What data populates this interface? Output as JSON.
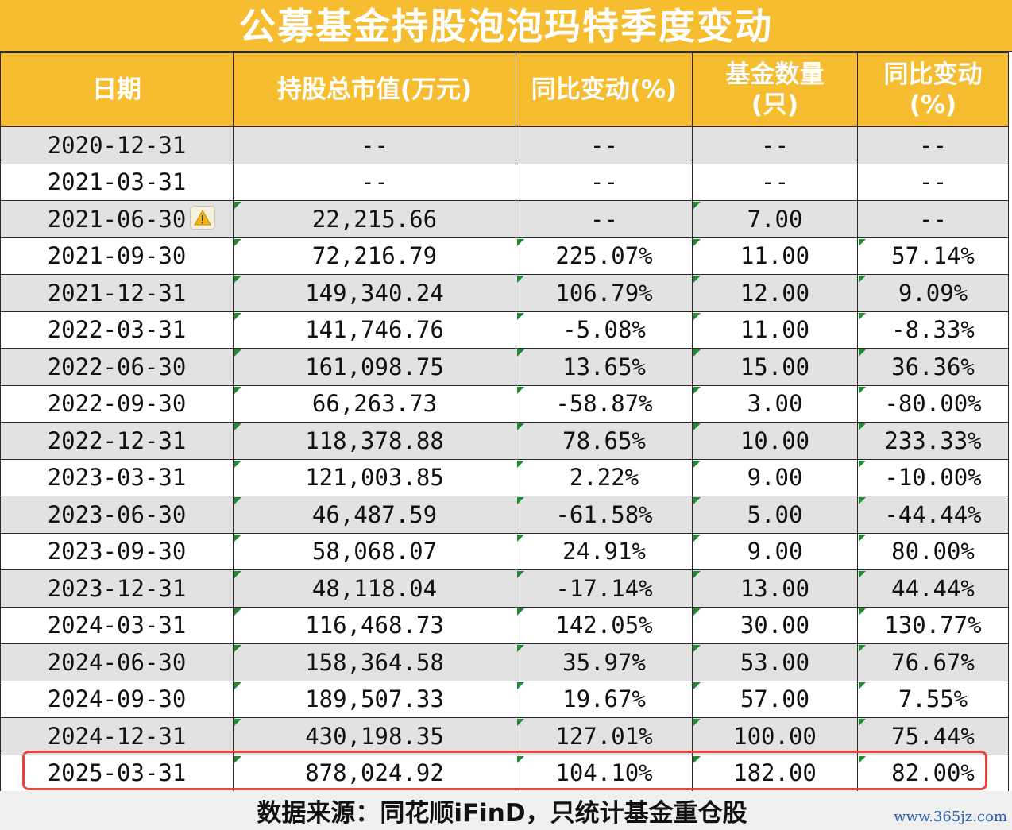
{
  "title": "公募基金持股泡泡玛特季度变动",
  "headers": {
    "date": "日期",
    "market_value": "持股总市值(万元)",
    "yoy_value": "同比变动(%)",
    "fund_count_l1": "基金数量",
    "fund_count_l2": "(只)",
    "yoy_count_l1": "同比变动",
    "yoy_count_l2": "(%)"
  },
  "rows": [
    [
      "2020-12-31",
      "--",
      "--",
      "--",
      "--"
    ],
    [
      "2021-03-31",
      "--",
      "--",
      "--",
      "--"
    ],
    [
      "2021-06-30",
      "22,215.66",
      "--",
      "7.00",
      "--"
    ],
    [
      "2021-09-30",
      "72,216.79",
      "225.07%",
      "11.00",
      "57.14%"
    ],
    [
      "2021-12-31",
      "149,340.24",
      "106.79%",
      "12.00",
      "9.09%"
    ],
    [
      "2022-03-31",
      "141,746.76",
      "-5.08%",
      "11.00",
      "-8.33%"
    ],
    [
      "2022-06-30",
      "161,098.75",
      "13.65%",
      "15.00",
      "36.36%"
    ],
    [
      "2022-09-30",
      "66,263.73",
      "-58.87%",
      "3.00",
      "-80.00%"
    ],
    [
      "2022-12-31",
      "118,378.88",
      "78.65%",
      "10.00",
      "233.33%"
    ],
    [
      "2023-03-31",
      "121,003.85",
      "2.22%",
      "9.00",
      "-10.00%"
    ],
    [
      "2023-06-30",
      "46,487.59",
      "-61.58%",
      "5.00",
      "-44.44%"
    ],
    [
      "2023-09-30",
      "58,068.07",
      "24.91%",
      "9.00",
      "80.00%"
    ],
    [
      "2023-12-31",
      "48,118.04",
      "-17.14%",
      "13.00",
      "44.44%"
    ],
    [
      "2024-03-31",
      "116,468.73",
      "142.05%",
      "30.00",
      "130.77%"
    ],
    [
      "2024-06-30",
      "158,364.58",
      "35.97%",
      "53.00",
      "76.67%"
    ],
    [
      "2024-09-30",
      "189,507.33",
      "19.67%",
      "57.00",
      "7.55%"
    ],
    [
      "2024-12-31",
      "430,198.35",
      "127.01%",
      "100.00",
      "75.44%"
    ],
    [
      "2025-03-31",
      "878,024.92",
      "104.10%",
      "182.00",
      "82.00%"
    ]
  ],
  "source": "数据来源：同花顺iFinD，只统计基金重仓股",
  "watermark": "www.365jz.com",
  "colors": {
    "header_bg": "#f5bd2f",
    "highlight": "#e8453c",
    "flag": "#1e8c2e"
  }
}
